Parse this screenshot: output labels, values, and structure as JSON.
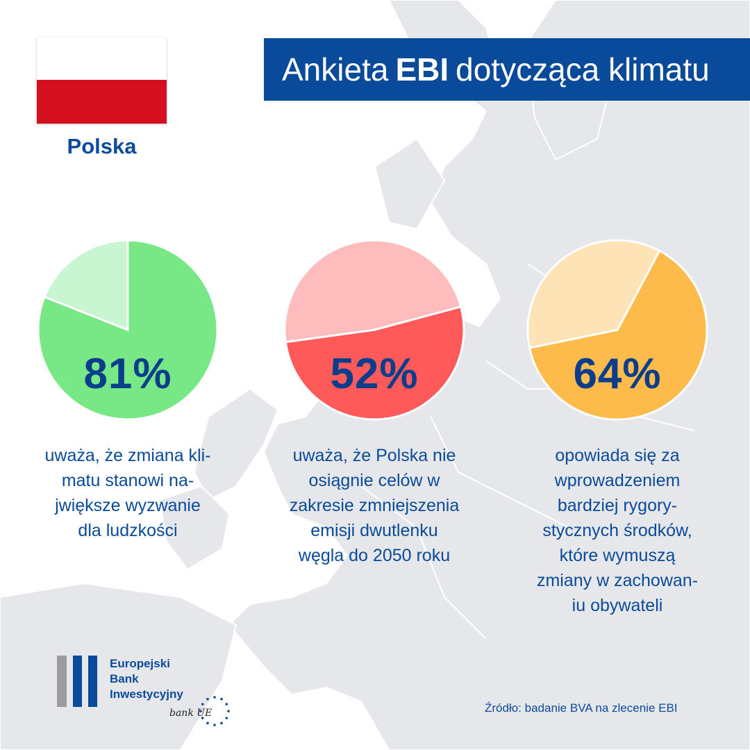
{
  "header": {
    "title_prefix": "Ankieta",
    "title_bold": "EBI",
    "title_suffix": "dotycząca klimatu"
  },
  "country": {
    "name": "Polska",
    "flag_colors": [
      "#ffffff",
      "#d4101f"
    ]
  },
  "chart_data": [
    {
      "type": "pie",
      "values": [
        81,
        19
      ],
      "colors": [
        "#78e887",
        "#c8f6d0"
      ],
      "label": "81%",
      "description": "uważa, że zmiana kli-\nmatu stanowi na-\njwiększe wyzwanie\ndla ludzkości"
    },
    {
      "type": "pie",
      "values": [
        52,
        48
      ],
      "colors": [
        "#fe5a5a",
        "#ffbcbc"
      ],
      "label": "52%",
      "description": "uważa, że Polska nie\nosiągnie celów w\nzakresie zmniejszenia\nemisji dwutlenku\nwęgla do 2050 roku"
    },
    {
      "type": "pie",
      "values": [
        64,
        36
      ],
      "colors": [
        "#fcbb4b",
        "#fde3b5"
      ],
      "label": "64%",
      "description": "opowiada się za\nwprowadzeniem\nbardziej rygory-\nstycznych środków,\nktóre wymuszą\nzmiany w zachowan-\niu obywateli"
    }
  ],
  "logo": {
    "line1": "Europejski",
    "line2": "Bank",
    "line3": "Inwestycyjny",
    "tagline": "bank UE",
    "colors": [
      "#9c9c9c",
      "#0a4a9a",
      "#ffdd00"
    ]
  },
  "source": "Źródło: badanie BVA na zlecenie EBI"
}
